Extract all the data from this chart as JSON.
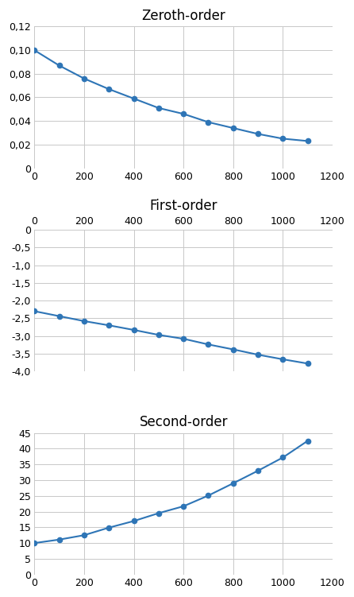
{
  "x": [
    0,
    100,
    200,
    300,
    400,
    500,
    600,
    700,
    800,
    900,
    1000,
    1100
  ],
  "zeroth": [
    0.1,
    0.087,
    0.076,
    0.067,
    0.059,
    0.051,
    0.046,
    0.039,
    0.034,
    0.029,
    0.025,
    0.023
  ],
  "first": [
    -2.3,
    -2.44,
    -2.58,
    -2.7,
    -2.83,
    -2.97,
    -3.08,
    -3.24,
    -3.38,
    -3.53,
    -3.66,
    -3.78
  ],
  "second": [
    10.0,
    11.1,
    12.5,
    14.9,
    17.0,
    19.5,
    21.7,
    25.1,
    29.0,
    33.0,
    37.2,
    42.5
  ],
  "line_color": "#2e75b6",
  "marker_color": "#2e75b6",
  "title_zeroth": "Zeroth-order",
  "title_first": "First-order",
  "title_second": "Second-order",
  "xlim": [
    0,
    1200
  ],
  "xticks": [
    0,
    200,
    400,
    600,
    800,
    1000,
    1200
  ],
  "zeroth_ylim": [
    0,
    0.12
  ],
  "zeroth_yticks": [
    0,
    0.02,
    0.04,
    0.06,
    0.08,
    0.1,
    0.12
  ],
  "first_ylim": [
    -4,
    0
  ],
  "first_yticks": [
    0,
    -0.5,
    -1.0,
    -1.5,
    -2.0,
    -2.5,
    -3.0,
    -3.5,
    -4.0
  ],
  "second_ylim": [
    0,
    45
  ],
  "second_yticks": [
    0,
    5,
    10,
    15,
    20,
    25,
    30,
    35,
    40,
    45
  ],
  "bg_color": "#ffffff",
  "grid_color": "#c8c8c8",
  "title_fontsize": 12,
  "tick_fontsize": 9
}
